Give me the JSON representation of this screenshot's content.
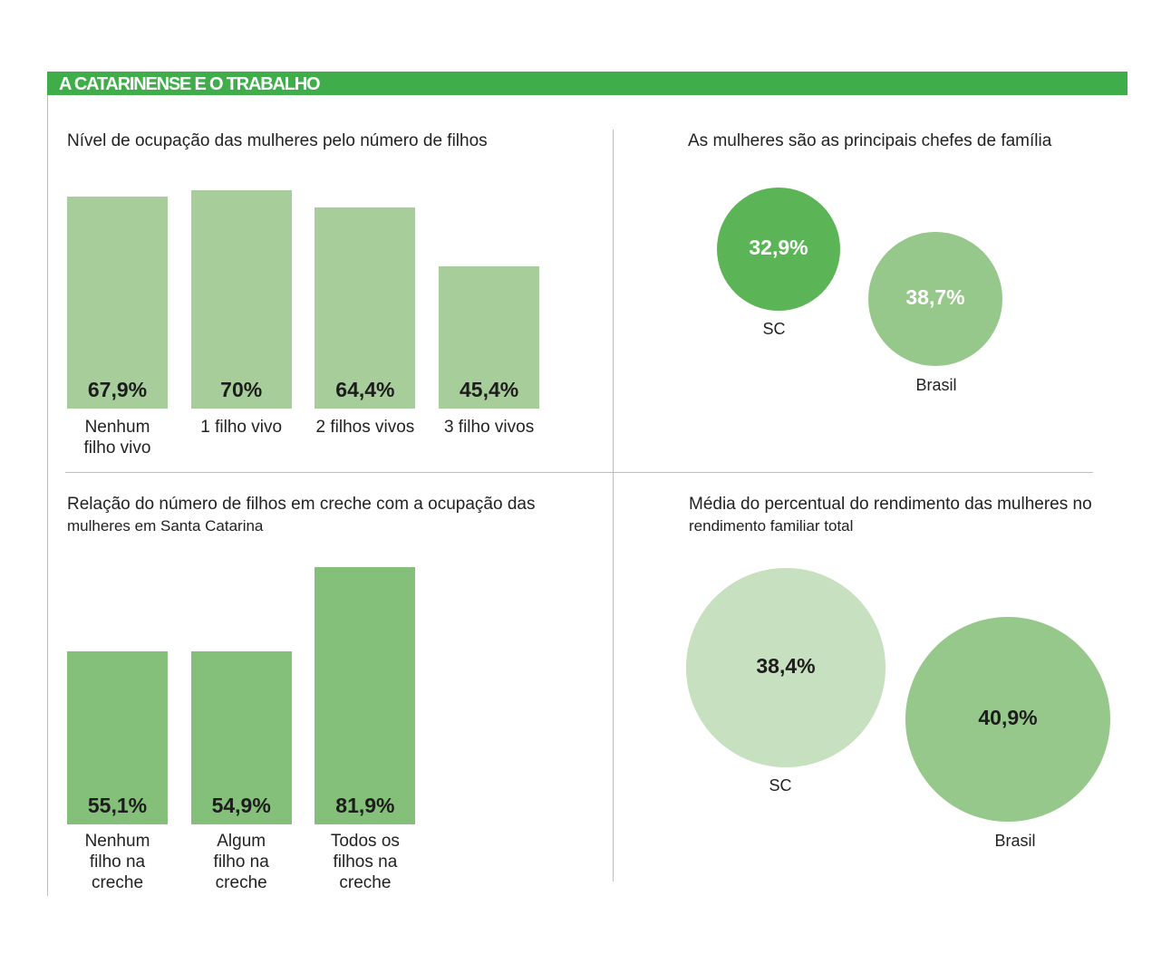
{
  "header": {
    "title": "A CATARINENSE E O TRABALHO"
  },
  "colors": {
    "header_green": "#3fae4a",
    "bar_light": "#a7ce9a",
    "bar_medium": "#84c07a",
    "bubble_dark": "#5bb455",
    "bubble_medium": "#95c88a",
    "bubble_light": "#c7e0bf"
  },
  "chart_data": [
    {
      "type": "bar",
      "title": "Nível de ocupação das mulheres pelo número de filhos",
      "categories": [
        "Nenhum filho vivo",
        "1 filho vivo",
        "2 filhos vivos",
        "3 filho vivos"
      ],
      "values": [
        67.9,
        70,
        64.4,
        45.4
      ],
      "value_labels": [
        "67,9%",
        "70%",
        "64,4%",
        "45,4%"
      ],
      "category_labels": [
        [
          "Nenhum",
          "filho vivo"
        ],
        [
          "1 filho vivo"
        ],
        [
          "2 filhos vivos"
        ],
        [
          "3 filho vivos"
        ]
      ],
      "color": "#a7ce9a"
    },
    {
      "type": "bubble",
      "title": "As mulheres são as principais chefes de família",
      "categories": [
        "SC",
        "Brasil"
      ],
      "values": [
        32.9,
        38.7
      ],
      "value_labels": [
        "32,9%",
        "38,7%"
      ],
      "colors": [
        "#5bb455",
        "#95c88a"
      ]
    },
    {
      "type": "bar",
      "title": "Relação do número de filhos em creche com a ocupação das",
      "subtitle": "mulheres em Santa Catarina",
      "categories": [
        "Nenhum filho na creche",
        "Algum filho na creche",
        "Todos os filhos na creche"
      ],
      "values": [
        55.1,
        54.9,
        81.9
      ],
      "value_labels": [
        "55,1%",
        "54,9%",
        "81,9%"
      ],
      "category_labels": [
        [
          "Nenhum",
          "filho na",
          "creche"
        ],
        [
          "Algum",
          "filho na",
          "creche"
        ],
        [
          "Todos os",
          "filhos na",
          "creche"
        ]
      ],
      "color": "#84c07a"
    },
    {
      "type": "bubble",
      "title": "Média do percentual do rendimento das mulheres no",
      "subtitle": "rendimento familiar total",
      "categories": [
        "SC",
        "Brasil"
      ],
      "values": [
        38.4,
        40.9
      ],
      "value_labels": [
        "38,4%",
        "40,9%"
      ],
      "colors": [
        "#c7e0bf",
        "#95c88a"
      ]
    }
  ]
}
